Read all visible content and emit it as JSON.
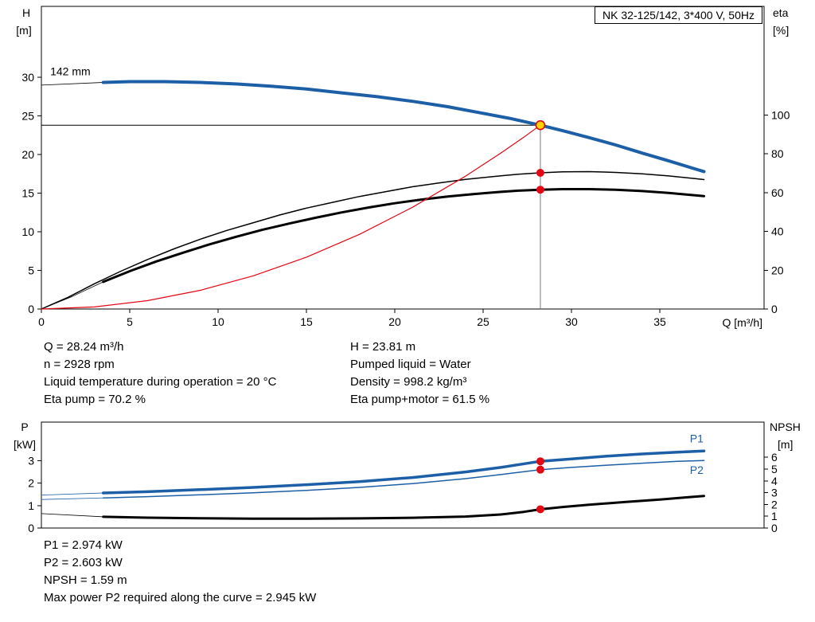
{
  "header": {
    "model_box": "NK 32-125/142, 3*400 V, 50Hz"
  },
  "info_block": {
    "left": [
      "Q = 28.24 m³/h",
      "n = 2928 rpm",
      "Liquid temperature during operation = 20 °C",
      "Eta pump = 70.2 %"
    ],
    "right": [
      "H = 23.81 m",
      "Pumped liquid = Water",
      "Density = 998.2 kg/m³",
      "Eta pump+motor = 61.5 %"
    ]
  },
  "footer_block": {
    "lines": [
      "P1 = 2.974 kW",
      "P2 = 2.603 kW",
      "NPSH = 1.59 m",
      "Max power P2 required along the curve = 2.945 kW"
    ]
  },
  "colors": {
    "curve_blue": "#1d5fa7",
    "curve_black": "#000000",
    "curve_red": "#e30613",
    "marker_red": "#e30613",
    "marker_yellow": "#ffd500",
    "guide_gray": "#7a7a7a",
    "frame": "#000000"
  },
  "chart_data": [
    {
      "id": "hq-chart",
      "type": "line",
      "title": "NK 32-125/142, 3*400 V, 50Hz",
      "xlabel": "Q [m³/h]",
      "ylabel_left": "H",
      "ylabel_left_unit": "[m]",
      "ylabel_right": "eta",
      "ylabel_right_unit": "[%]",
      "xlim": [
        0,
        40.9
      ],
      "ylim_left": [
        0,
        39.2
      ],
      "ylim_right": [
        0,
        156
      ],
      "xticks": [
        0,
        5,
        10,
        15,
        20,
        25,
        30,
        35
      ],
      "yticks_left": [
        0,
        5,
        10,
        15,
        20,
        25,
        30
      ],
      "yticks_right": [
        0,
        20,
        40,
        60,
        80,
        100
      ],
      "grid": false,
      "legend": "none",
      "annotations": [
        {
          "text": "142 mm",
          "x": 0.5,
          "axis": "left",
          "y": 30.3,
          "anchor": "start"
        }
      ],
      "series": [
        {
          "name": "head-lead",
          "axis": "left",
          "color": "#000000",
          "width": 0.8,
          "points": [
            [
              0,
              29.0
            ],
            [
              3.5,
              29.35
            ]
          ]
        },
        {
          "name": "head-142mm",
          "axis": "left",
          "color": "#1d5fa7",
          "width": 4,
          "points": [
            [
              3.5,
              29.35
            ],
            [
              5,
              29.45
            ],
            [
              7,
              29.45
            ],
            [
              9,
              29.35
            ],
            [
              11,
              29.15
            ],
            [
              13,
              28.85
            ],
            [
              15,
              28.5
            ],
            [
              17,
              28.0
            ],
            [
              19,
              27.5
            ],
            [
              21,
              26.9
            ],
            [
              23,
              26.2
            ],
            [
              25,
              25.35
            ],
            [
              26.5,
              24.7
            ],
            [
              28.24,
              23.81
            ],
            [
              29.5,
              23.1
            ],
            [
              31,
              22.2
            ],
            [
              32.5,
              21.25
            ],
            [
              34,
              20.2
            ],
            [
              35.5,
              19.2
            ],
            [
              37,
              18.15
            ],
            [
              37.5,
              17.8
            ]
          ]
        },
        {
          "name": "eta-pump",
          "axis": "right",
          "color": "#000000",
          "width": 1.5,
          "points": [
            [
              0,
              0
            ],
            [
              1.5,
              6
            ],
            [
              3,
              13
            ],
            [
              4.5,
              19.5
            ],
            [
              6,
              25.5
            ],
            [
              7.5,
              31
            ],
            [
              9,
              36
            ],
            [
              10.5,
              40.5
            ],
            [
              12,
              44.5
            ],
            [
              13.5,
              48.5
            ],
            [
              15,
              52
            ],
            [
              16.5,
              55
            ],
            [
              18,
              58
            ],
            [
              19.5,
              60.5
            ],
            [
              21,
              63
            ],
            [
              22.5,
              65
            ],
            [
              24,
              66.8
            ],
            [
              25.5,
              68.2
            ],
            [
              27,
              69.5
            ],
            [
              28.24,
              70.2
            ],
            [
              29.5,
              70.7
            ],
            [
              31,
              70.8
            ],
            [
              32.5,
              70.4
            ],
            [
              34,
              69.7
            ],
            [
              35.5,
              68.6
            ],
            [
              37,
              67.2
            ],
            [
              37.5,
              66.7
            ]
          ]
        },
        {
          "name": "eta-pump-motor-lead",
          "axis": "right",
          "color": "#000000",
          "width": 0.8,
          "points": [
            [
              0,
              0
            ],
            [
              1.75,
              6.5
            ],
            [
              3.5,
              14
            ]
          ]
        },
        {
          "name": "eta-pump-motor",
          "axis": "right",
          "color": "#000000",
          "width": 3,
          "points": [
            [
              3.5,
              14
            ],
            [
              5,
              19.5
            ],
            [
              6.5,
              24.5
            ],
            [
              8,
              29
            ],
            [
              9.5,
              33.3
            ],
            [
              11,
              37.2
            ],
            [
              12.5,
              40.8
            ],
            [
              14,
              44
            ],
            [
              15.5,
              47
            ],
            [
              17,
              49.8
            ],
            [
              18.5,
              52.3
            ],
            [
              20,
              54.5
            ],
            [
              21.5,
              56.4
            ],
            [
              23,
              58
            ],
            [
              24.5,
              59.3
            ],
            [
              26,
              60.4
            ],
            [
              27,
              61
            ],
            [
              28.24,
              61.5
            ],
            [
              29.5,
              61.8
            ],
            [
              31,
              61.8
            ],
            [
              32.5,
              61.5
            ],
            [
              34,
              60.8
            ],
            [
              35.5,
              59.8
            ],
            [
              37,
              58.6
            ],
            [
              37.5,
              58.2
            ]
          ]
        },
        {
          "name": "system-curve",
          "axis": "left",
          "color": "#e30613",
          "width": 1.2,
          "points": [
            [
              0,
              0
            ],
            [
              3,
              0.27
            ],
            [
              6,
              1.08
            ],
            [
              9,
              2.42
            ],
            [
              12,
              4.3
            ],
            [
              15,
              6.72
            ],
            [
              18,
              9.67
            ],
            [
              21,
              13.17
            ],
            [
              24,
              17.2
            ],
            [
              26,
              20.19
            ],
            [
              27.3,
              22.25
            ],
            [
              28.24,
              23.81
            ]
          ]
        }
      ],
      "guides": [
        {
          "name": "head-guide-horizontal",
          "type": "h",
          "axis": "left",
          "value": 23.81,
          "x1": 0,
          "x2": 28.24,
          "color": "#000000",
          "width": 1
        },
        {
          "name": "duty-guide-vertical",
          "type": "v",
          "axis": "left",
          "x": 28.24,
          "v1": 0,
          "v2": 23.81,
          "color": "#7a7a7a",
          "width": 1
        }
      ],
      "markers": [
        {
          "name": "eta-pump-point",
          "x": 28.24,
          "axis": "right",
          "y": 70.2,
          "r": 5,
          "fill": "#e30613"
        },
        {
          "name": "eta-pump-motor-point",
          "x": 28.24,
          "axis": "right",
          "y": 61.5,
          "r": 5,
          "fill": "#e30613"
        },
        {
          "name": "duty-point",
          "x": 28.24,
          "axis": "left",
          "y": 23.81,
          "r": 5.5,
          "fill": "#ffd500",
          "stroke": "#e30613",
          "stroke_width": 1.6
        }
      ],
      "duty_point": {
        "Q_m3h": 28.24,
        "H_m": 23.81,
        "eta_pump_pct": 70.2,
        "eta_pump_motor_pct": 61.5
      }
    },
    {
      "id": "power-npsh-chart",
      "type": "line",
      "xlabel": "",
      "ylabel_left": "P",
      "ylabel_left_unit": "[kW]",
      "ylabel_right": "NPSH",
      "ylabel_right_unit": "[m]",
      "xlim": [
        0,
        40.9
      ],
      "ylim_left": [
        0,
        4.72
      ],
      "ylim_right": [
        0,
        8.98
      ],
      "xticks": [],
      "yticks_left": [
        0,
        1,
        2,
        3
      ],
      "yticks_right": [
        0,
        1,
        2,
        3,
        4,
        5,
        6
      ],
      "grid": false,
      "legend": "inline-labels",
      "series": [
        {
          "name": "p1-lead",
          "axis": "left",
          "color": "#1d5fa7",
          "width": 0.8,
          "points": [
            [
              0,
              1.47
            ],
            [
              3.5,
              1.56
            ]
          ]
        },
        {
          "name": "p1",
          "axis": "left",
          "color": "#1d5fa7",
          "width": 3.5,
          "label": "P1",
          "label_pos": [
            36.7,
            3.82
          ],
          "points": [
            [
              3.5,
              1.56
            ],
            [
              6,
              1.62
            ],
            [
              9,
              1.71
            ],
            [
              12,
              1.81
            ],
            [
              15,
              1.93
            ],
            [
              18,
              2.07
            ],
            [
              21,
              2.25
            ],
            [
              24,
              2.5
            ],
            [
              26,
              2.7
            ],
            [
              28.24,
              2.974
            ],
            [
              30,
              3.08
            ],
            [
              32,
              3.2
            ],
            [
              34,
              3.3
            ],
            [
              36,
              3.38
            ],
            [
              37.5,
              3.43
            ]
          ]
        },
        {
          "name": "p2-lead",
          "axis": "left",
          "color": "#1d5fa7",
          "width": 0.8,
          "points": [
            [
              0,
              1.27
            ],
            [
              3.5,
              1.34
            ]
          ]
        },
        {
          "name": "p2",
          "axis": "left",
          "color": "#1d5fa7",
          "width": 1.5,
          "label": "P2",
          "label_pos": [
            36.7,
            2.42
          ],
          "points": [
            [
              3.5,
              1.34
            ],
            [
              6,
              1.4
            ],
            [
              9,
              1.48
            ],
            [
              12,
              1.57
            ],
            [
              15,
              1.68
            ],
            [
              18,
              1.81
            ],
            [
              21,
              1.98
            ],
            [
              24,
              2.2
            ],
            [
              26,
              2.38
            ],
            [
              28.24,
              2.603
            ],
            [
              30,
              2.7
            ],
            [
              32,
              2.8
            ],
            [
              34,
              2.89
            ],
            [
              36,
              2.97
            ],
            [
              37.5,
              3.01
            ]
          ]
        },
        {
          "name": "npsh-lead",
          "axis": "right",
          "color": "#000000",
          "width": 0.8,
          "points": [
            [
              0,
              1.22
            ],
            [
              3.5,
              0.95
            ]
          ]
        },
        {
          "name": "npsh",
          "axis": "right",
          "color": "#000000",
          "width": 3,
          "points": [
            [
              3.5,
              0.95
            ],
            [
              6,
              0.88
            ],
            [
              9,
              0.83
            ],
            [
              12,
              0.8
            ],
            [
              15,
              0.8
            ],
            [
              18,
              0.82
            ],
            [
              21,
              0.87
            ],
            [
              24,
              0.97
            ],
            [
              26,
              1.15
            ],
            [
              27.3,
              1.37
            ],
            [
              28.24,
              1.59
            ],
            [
              29.5,
              1.78
            ],
            [
              31,
              1.98
            ],
            [
              33,
              2.2
            ],
            [
              35,
              2.42
            ],
            [
              36.5,
              2.6
            ],
            [
              37.5,
              2.72
            ]
          ]
        }
      ],
      "guides": [],
      "markers": [
        {
          "name": "p1-point",
          "x": 28.24,
          "axis": "left",
          "y": 2.974,
          "r": 5,
          "fill": "#e30613"
        },
        {
          "name": "p2-point",
          "x": 28.24,
          "axis": "left",
          "y": 2.603,
          "r": 5,
          "fill": "#e30613"
        },
        {
          "name": "npsh-point",
          "x": 28.24,
          "axis": "right",
          "y": 1.59,
          "r": 5,
          "fill": "#e30613"
        }
      ],
      "duty_point": {
        "Q_m3h": 28.24,
        "P1_kW": 2.974,
        "P2_kW": 2.603,
        "NPSH_m": 1.59
      }
    }
  ]
}
